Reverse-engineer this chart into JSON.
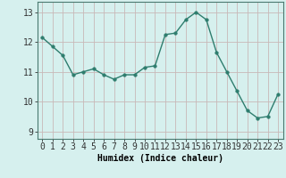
{
  "x": [
    0,
    1,
    2,
    3,
    4,
    5,
    6,
    7,
    8,
    9,
    10,
    11,
    12,
    13,
    14,
    15,
    16,
    17,
    18,
    19,
    20,
    21,
    22,
    23
  ],
  "y": [
    12.15,
    11.85,
    11.55,
    10.9,
    11.0,
    11.1,
    10.9,
    10.75,
    10.9,
    10.9,
    11.15,
    11.2,
    12.25,
    12.3,
    12.75,
    13.0,
    12.75,
    11.65,
    11.0,
    10.35,
    9.7,
    9.45,
    9.5,
    10.25
  ],
  "line_color": "#2e7d6e",
  "marker_color": "#2e7d6e",
  "bg_color": "#d6f0ee",
  "grid_color_v": "#c8b8b8",
  "grid_color_h": "#c8b8b8",
  "xlabel": "Humidex (Indice chaleur)",
  "xlim": [
    -0.5,
    23.5
  ],
  "ylim": [
    8.75,
    13.35
  ],
  "yticks": [
    9,
    10,
    11,
    12,
    13
  ],
  "xticks": [
    0,
    1,
    2,
    3,
    4,
    5,
    6,
    7,
    8,
    9,
    10,
    11,
    12,
    13,
    14,
    15,
    16,
    17,
    18,
    19,
    20,
    21,
    22,
    23
  ],
  "xlabel_fontsize": 7,
  "tick_fontsize": 7,
  "linewidth": 1.0,
  "markersize": 2.5
}
